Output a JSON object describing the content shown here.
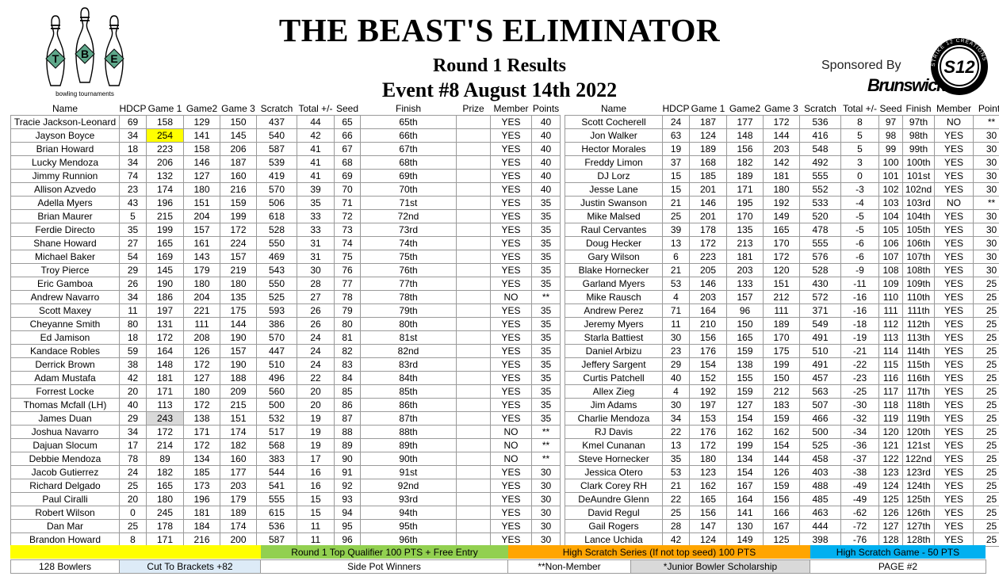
{
  "header": {
    "logo_letters": [
      "T",
      "B",
      "E"
    ],
    "logo_caption": "bowling tournaments",
    "title": "THE BEAST'S ELIMINATOR",
    "subtitle": "Round 1 Results",
    "event": "Event #8 August 14th 2022",
    "sponsor_label": "Sponsored By",
    "sponsor_name": "Brunswick",
    "s12_mark": "S12",
    "s12_ring": "STRIKE 12 CREATIONS"
  },
  "colors": {
    "logo_green": "#5fa88b",
    "legend_yellow": "#ffff00",
    "legend_green": "#92d050",
    "legend_orange": "#ffa500",
    "legend_blue": "#00b0f0",
    "footer_light_blue": "#ddebf7",
    "footer_gray": "#d9d9d9",
    "highlight_yellow": "#ffff00",
    "highlight_gray": "#d9d9d9"
  },
  "columns_left": [
    "Name",
    "HDCP",
    "Game 1",
    "Game2",
    "Game 3",
    "Scratch",
    "Total +/-",
    "Seed",
    "Finish",
    "Prize",
    "Member",
    "Points"
  ],
  "columns_right": [
    "Name",
    "HDCP",
    "Game 1",
    "Game2",
    "Game 3",
    "Scratch",
    "Total +/-",
    "Seed",
    "Finish",
    "Member",
    "Points"
  ],
  "left_rows": [
    [
      "Tracie Jackson-Leonard",
      "69",
      "158",
      "129",
      "150",
      "437",
      "44",
      "65",
      "65th",
      "",
      "YES",
      "40"
    ],
    [
      "Jayson Boyce",
      "34",
      "254",
      "141",
      "145",
      "540",
      "42",
      "66",
      "66th",
      "",
      "YES",
      "40"
    ],
    [
      "Brian Howard",
      "18",
      "223",
      "158",
      "206",
      "587",
      "41",
      "67",
      "67th",
      "",
      "YES",
      "40"
    ],
    [
      "Lucky Mendoza",
      "34",
      "206",
      "146",
      "187",
      "539",
      "41",
      "68",
      "68th",
      "",
      "YES",
      "40"
    ],
    [
      "Jimmy Runnion",
      "74",
      "132",
      "127",
      "160",
      "419",
      "41",
      "69",
      "69th",
      "",
      "YES",
      "40"
    ],
    [
      "Allison Azvedo",
      "23",
      "174",
      "180",
      "216",
      "570",
      "39",
      "70",
      "70th",
      "",
      "YES",
      "40"
    ],
    [
      "Adella Myers",
      "43",
      "196",
      "151",
      "159",
      "506",
      "35",
      "71",
      "71st",
      "",
      "YES",
      "35"
    ],
    [
      "Brian Maurer",
      "5",
      "215",
      "204",
      "199",
      "618",
      "33",
      "72",
      "72nd",
      "",
      "YES",
      "35"
    ],
    [
      "Ferdie Directo",
      "35",
      "199",
      "157",
      "172",
      "528",
      "33",
      "73",
      "73rd",
      "",
      "YES",
      "35"
    ],
    [
      "Shane Howard",
      "27",
      "165",
      "161",
      "224",
      "550",
      "31",
      "74",
      "74th",
      "",
      "YES",
      "35"
    ],
    [
      "Michael Baker",
      "54",
      "169",
      "143",
      "157",
      "469",
      "31",
      "75",
      "75th",
      "",
      "YES",
      "35"
    ],
    [
      "Troy Pierce",
      "29",
      "145",
      "179",
      "219",
      "543",
      "30",
      "76",
      "76th",
      "",
      "YES",
      "35"
    ],
    [
      "Eric Gamboa",
      "26",
      "190",
      "180",
      "180",
      "550",
      "28",
      "77",
      "77th",
      "",
      "YES",
      "35"
    ],
    [
      "Andrew Navarro",
      "34",
      "186",
      "204",
      "135",
      "525",
      "27",
      "78",
      "78th",
      "",
      "NO",
      "**"
    ],
    [
      "Scott Maxey",
      "11",
      "197",
      "221",
      "175",
      "593",
      "26",
      "79",
      "79th",
      "",
      "YES",
      "35"
    ],
    [
      "Cheyanne Smith",
      "80",
      "131",
      "111",
      "144",
      "386",
      "26",
      "80",
      "80th",
      "",
      "YES",
      "35"
    ],
    [
      "Ed Jamison",
      "18",
      "172",
      "208",
      "190",
      "570",
      "24",
      "81",
      "81st",
      "",
      "YES",
      "35"
    ],
    [
      "Kandace Robles",
      "59",
      "164",
      "126",
      "157",
      "447",
      "24",
      "82",
      "82nd",
      "",
      "YES",
      "35"
    ],
    [
      "Derrick Brown",
      "38",
      "148",
      "172",
      "190",
      "510",
      "24",
      "83",
      "83rd",
      "",
      "YES",
      "35"
    ],
    [
      "Adam Mustafa",
      "42",
      "181",
      "127",
      "188",
      "496",
      "22",
      "84",
      "84th",
      "",
      "YES",
      "35"
    ],
    [
      "Forrest Locke",
      "20",
      "171",
      "180",
      "209",
      "560",
      "20",
      "85",
      "85th",
      "",
      "YES",
      "35"
    ],
    [
      "Thomas Mcfall (LH)",
      "40",
      "113",
      "172",
      "215",
      "500",
      "20",
      "86",
      "86th",
      "",
      "YES",
      "35"
    ],
    [
      "James Duan",
      "29",
      "243",
      "138",
      "151",
      "532",
      "19",
      "87",
      "87th",
      "",
      "YES",
      "35"
    ],
    [
      "Joshua Navarro",
      "34",
      "172",
      "171",
      "174",
      "517",
      "19",
      "88",
      "88th",
      "",
      "NO",
      "**"
    ],
    [
      "Dajuan Slocum",
      "17",
      "214",
      "172",
      "182",
      "568",
      "19",
      "89",
      "89th",
      "",
      "NO",
      "**"
    ],
    [
      "Debbie Mendoza",
      "78",
      "89",
      "134",
      "160",
      "383",
      "17",
      "90",
      "90th",
      "",
      "NO",
      "**"
    ],
    [
      "Jacob Gutierrez",
      "24",
      "182",
      "185",
      "177",
      "544",
      "16",
      "91",
      "91st",
      "",
      "YES",
      "30"
    ],
    [
      "Richard Delgado",
      "25",
      "165",
      "173",
      "203",
      "541",
      "16",
      "92",
      "92nd",
      "",
      "YES",
      "30"
    ],
    [
      "Paul Ciralli",
      "20",
      "180",
      "196",
      "179",
      "555",
      "15",
      "93",
      "93rd",
      "",
      "YES",
      "30"
    ],
    [
      "Robert Wilson",
      "0",
      "245",
      "181",
      "189",
      "615",
      "15",
      "94",
      "94th",
      "",
      "YES",
      "30"
    ],
    [
      "Dan Mar",
      "25",
      "178",
      "184",
      "174",
      "536",
      "11",
      "95",
      "95th",
      "",
      "YES",
      "30"
    ],
    [
      "Brandon Howard",
      "8",
      "171",
      "216",
      "200",
      "587",
      "11",
      "96",
      "96th",
      "",
      "YES",
      "30"
    ]
  ],
  "right_rows": [
    [
      "Scott Cocherell",
      "24",
      "187",
      "177",
      "172",
      "536",
      "8",
      "97",
      "97th",
      "NO",
      "**"
    ],
    [
      "Jon Walker",
      "63",
      "124",
      "148",
      "144",
      "416",
      "5",
      "98",
      "98th",
      "YES",
      "30"
    ],
    [
      "Hector Morales",
      "19",
      "189",
      "156",
      "203",
      "548",
      "5",
      "99",
      "99th",
      "YES",
      "30"
    ],
    [
      "Freddy Limon",
      "37",
      "168",
      "182",
      "142",
      "492",
      "3",
      "100",
      "100th",
      "YES",
      "30"
    ],
    [
      "DJ Lorz",
      "15",
      "185",
      "189",
      "181",
      "555",
      "0",
      "101",
      "101st",
      "YES",
      "30"
    ],
    [
      "Jesse Lane",
      "15",
      "201",
      "171",
      "180",
      "552",
      "-3",
      "102",
      "102nd",
      "YES",
      "30"
    ],
    [
      "Justin Swanson",
      "21",
      "146",
      "195",
      "192",
      "533",
      "-4",
      "103",
      "103rd",
      "NO",
      "**"
    ],
    [
      "Mike Malsed",
      "25",
      "201",
      "170",
      "149",
      "520",
      "-5",
      "104",
      "104th",
      "YES",
      "30"
    ],
    [
      "Raul Cervantes",
      "39",
      "178",
      "135",
      "165",
      "478",
      "-5",
      "105",
      "105th",
      "YES",
      "30"
    ],
    [
      "Doug Hecker",
      "13",
      "172",
      "213",
      "170",
      "555",
      "-6",
      "106",
      "106th",
      "YES",
      "30"
    ],
    [
      "Gary Wilson",
      "6",
      "223",
      "181",
      "172",
      "576",
      "-6",
      "107",
      "107th",
      "YES",
      "30"
    ],
    [
      "Blake Hornecker",
      "21",
      "205",
      "203",
      "120",
      "528",
      "-9",
      "108",
      "108th",
      "YES",
      "30"
    ],
    [
      "Garland Myers",
      "53",
      "146",
      "133",
      "151",
      "430",
      "-11",
      "109",
      "109th",
      "YES",
      "25"
    ],
    [
      "Mike Rausch",
      "4",
      "203",
      "157",
      "212",
      "572",
      "-16",
      "110",
      "110th",
      "YES",
      "25"
    ],
    [
      "Andrew Perez",
      "71",
      "164",
      "96",
      "111",
      "371",
      "-16",
      "111",
      "111th",
      "YES",
      "25"
    ],
    [
      "Jeremy Myers",
      "11",
      "210",
      "150",
      "189",
      "549",
      "-18",
      "112",
      "112th",
      "YES",
      "25"
    ],
    [
      "Starla Battiest",
      "30",
      "156",
      "165",
      "170",
      "491",
      "-19",
      "113",
      "113th",
      "YES",
      "25"
    ],
    [
      "Daniel Arbizu",
      "23",
      "176",
      "159",
      "175",
      "510",
      "-21",
      "114",
      "114th",
      "YES",
      "25"
    ],
    [
      "Jeffery Sargent",
      "29",
      "154",
      "138",
      "199",
      "491",
      "-22",
      "115",
      "115th",
      "YES",
      "25"
    ],
    [
      "Curtis Patchell",
      "40",
      "152",
      "155",
      "150",
      "457",
      "-23",
      "116",
      "116th",
      "YES",
      "25"
    ],
    [
      "Allex Zieg",
      "4",
      "192",
      "159",
      "212",
      "563",
      "-25",
      "117",
      "117th",
      "YES",
      "25"
    ],
    [
      "Jim Adams",
      "30",
      "197",
      "127",
      "183",
      "507",
      "-30",
      "118",
      "118th",
      "YES",
      "25"
    ],
    [
      "Charlie Mendoza",
      "34",
      "153",
      "154",
      "159",
      "466",
      "-32",
      "119",
      "119th",
      "YES",
      "25"
    ],
    [
      "RJ Davis",
      "22",
      "176",
      "162",
      "162",
      "500",
      "-34",
      "120",
      "120th",
      "YES",
      "25"
    ],
    [
      "Kmel Cunanan",
      "13",
      "172",
      "199",
      "154",
      "525",
      "-36",
      "121",
      "121st",
      "YES",
      "25"
    ],
    [
      "Steve Hornecker",
      "35",
      "180",
      "134",
      "144",
      "458",
      "-37",
      "122",
      "122nd",
      "YES",
      "25"
    ],
    [
      "Jessica Otero",
      "53",
      "123",
      "154",
      "126",
      "403",
      "-38",
      "123",
      "123rd",
      "YES",
      "25"
    ],
    [
      "Clark Corey RH",
      "21",
      "162",
      "167",
      "159",
      "488",
      "-49",
      "124",
      "124th",
      "YES",
      "25"
    ],
    [
      "DeAundre Glenn",
      "22",
      "165",
      "164",
      "156",
      "485",
      "-49",
      "125",
      "125th",
      "YES",
      "25"
    ],
    [
      "David Regul",
      "25",
      "156",
      "141",
      "166",
      "463",
      "-62",
      "126",
      "126th",
      "YES",
      "25"
    ],
    [
      "Gail Rogers",
      "28",
      "147",
      "130",
      "167",
      "444",
      "-72",
      "127",
      "127th",
      "YES",
      "25"
    ],
    [
      "Lance Uchida",
      "42",
      "124",
      "149",
      "125",
      "398",
      "-76",
      "128",
      "128th",
      "YES",
      "25"
    ]
  ],
  "highlights": [
    {
      "row": 1,
      "col": 2,
      "color": "yellow"
    },
    {
      "row": 22,
      "col": 2,
      "color": "gray"
    }
  ],
  "legend": {
    "yellow": "",
    "green": "Round 1 Top Qualifier  100 PTS + Free Entry",
    "orange": "High Scratch Series (If not top seed) 100 PTS",
    "blue": "High Scratch Game - 50 PTS"
  },
  "footer": {
    "bowlers": "128 Bowlers",
    "cut": "Cut To Brackets +82",
    "side_pot": "Side Pot Winners",
    "non_member": "**Non-Member",
    "junior": "*Junior Bowler Scholarship",
    "page": "PAGE #2"
  }
}
